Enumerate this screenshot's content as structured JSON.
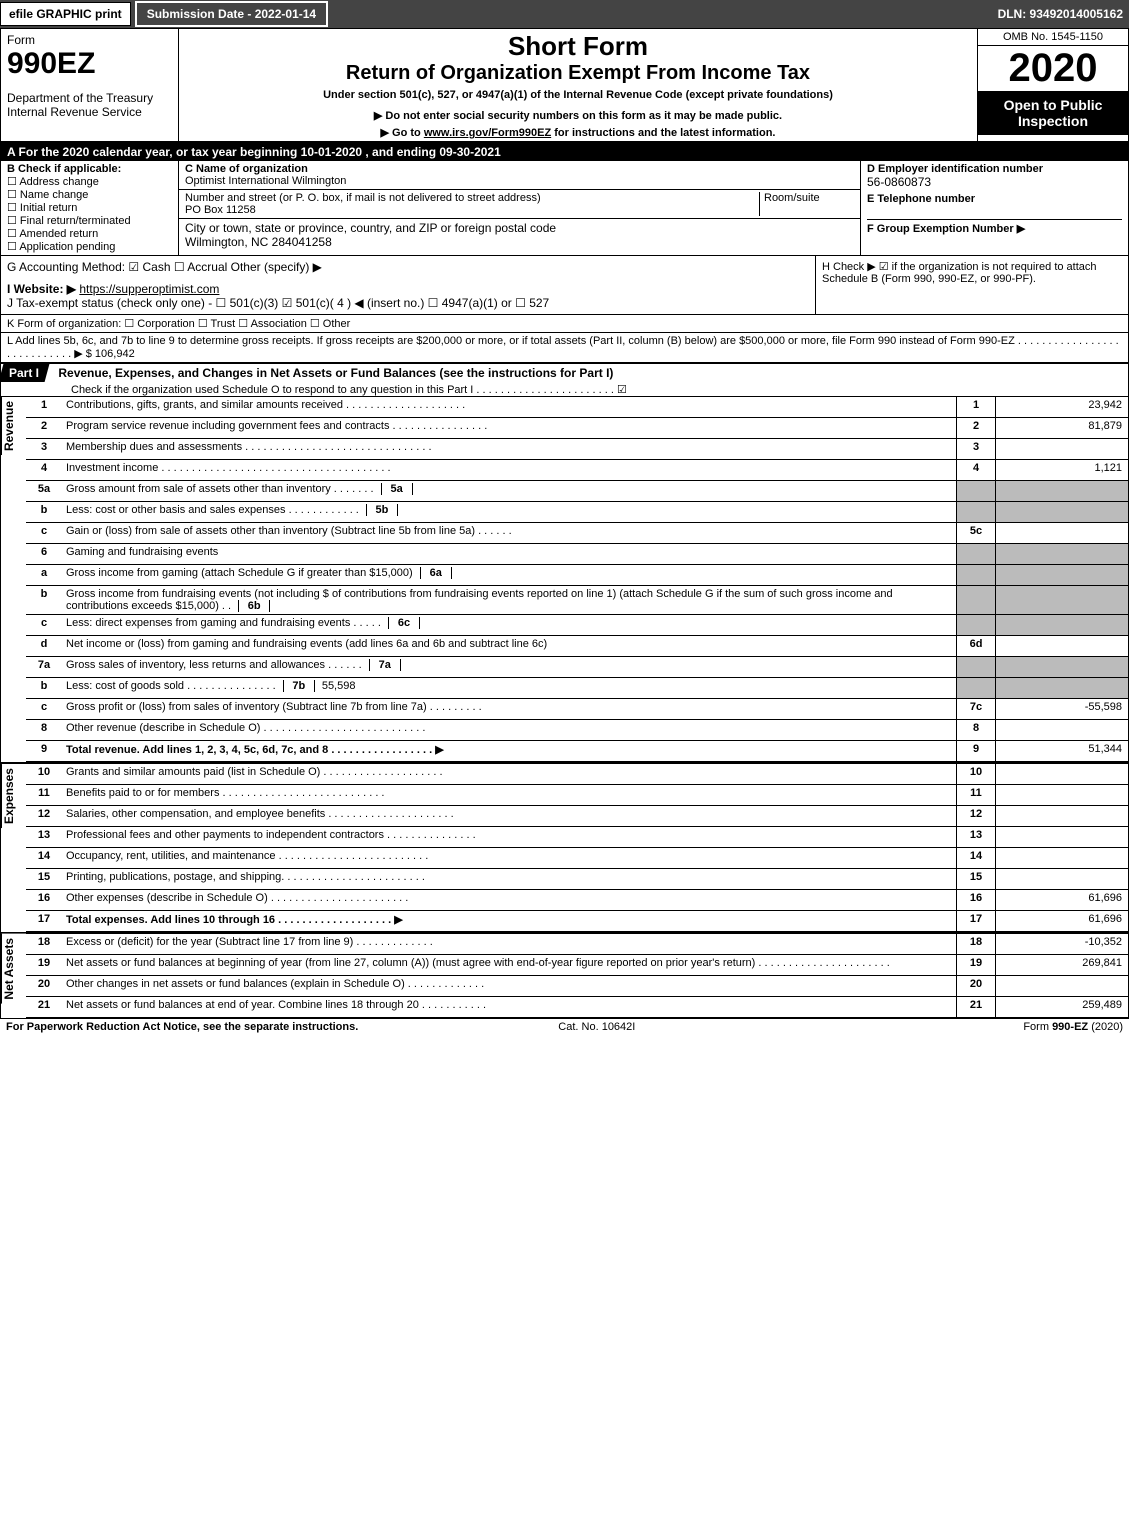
{
  "topbar": {
    "efile": "efile GRAPHIC print",
    "sub": "Submission Date - 2022-01-14",
    "dln": "DLN: 93492014005162"
  },
  "hdr": {
    "form": "Form",
    "form_num": "990EZ",
    "dept": "Department of the Treasury",
    "irs": "Internal Revenue Service",
    "short_form": "Short Form",
    "title": "Return of Organization Exempt From Income Tax",
    "under": "Under section 501(c), 527, or 4947(a)(1) of the Internal Revenue Code (except private foundations)",
    "warn": "▶ Do not enter social security numbers on this form as it may be made public.",
    "goto_pre": "▶ Go to ",
    "goto_link": "www.irs.gov/Form990EZ",
    "goto_post": " for instructions and the latest information.",
    "omb": "OMB No. 1545-1150",
    "year": "2020",
    "open": "Open to Public Inspection"
  },
  "A": "A  For the 2020 calendar year, or tax year beginning 10-01-2020 , and ending 09-30-2021",
  "B": {
    "hdr": "B  Check if applicable:",
    "opts": [
      "Address change",
      "Name change",
      "Initial return",
      "Final return/terminated",
      "Amended return",
      "Application pending"
    ]
  },
  "C": {
    "name_lbl": "C Name of organization",
    "name": "Optimist International Wilmington",
    "addr_lbl": "Number and street (or P. O. box, if mail is not delivered to street address)",
    "room_lbl": "Room/suite",
    "addr": "PO Box 11258",
    "city_lbl": "City or town, state or province, country, and ZIP or foreign postal code",
    "city": "Wilmington, NC  284041258"
  },
  "D": {
    "lbl": "D Employer identification number",
    "ein": "56-0860873"
  },
  "E": {
    "lbl": "E Telephone number"
  },
  "F": {
    "lbl": "F Group Exemption Number   ▶"
  },
  "G": "G Accounting Method:   ☑ Cash   ☐ Accrual   Other (specify) ▶",
  "H": "H   Check ▶  ☑  if the organization is not required to attach Schedule B (Form 990, 990-EZ, or 990-PF).",
  "I_pre": "I Website: ▶",
  "I_link": "https://supperoptimist.com",
  "J": "J Tax-exempt status (check only one) - ☐ 501(c)(3)  ☑ 501(c)( 4 ) ◀ (insert no.)  ☐ 4947(a)(1) or  ☐ 527",
  "K": "K Form of organization:   ☐ Corporation   ☐ Trust   ☐ Association   ☐ Other",
  "L": "L Add lines 5b, 6c, and 7b to line 9 to determine gross receipts. If gross receipts are $200,000 or more, or if total assets (Part II, column (B) below) are $500,000 or more, file Form 990 instead of Form 990-EZ  .  .  .  .  .  .  .  .  .  .  .  .  .  .  .  .  .  .  .  .  .  .  .  .  .  .  .  .  ▶ $ 106,942",
  "part1": {
    "lbl": "Part I",
    "title": "Revenue, Expenses, and Changes in Net Assets or Fund Balances (see the instructions for Part I)",
    "check": "Check if the organization used Schedule O to respond to any question in this Part I .  .  .  .  .  .  .  .  .  .  .  .  .  .  .  .  .  .  .  .  .  .  .   ☑"
  },
  "sides": {
    "rev": "Revenue",
    "exp": "Expenses",
    "na": "Net Assets"
  },
  "rows": {
    "1": {
      "n": "1",
      "d": "Contributions, gifts, grants, and similar amounts received  .  .  .  .  .  .  .  .  .  .  .  .  .  .  .  .  .  .  .  .",
      "box": "1",
      "v": "23,942"
    },
    "2": {
      "n": "2",
      "d": "Program service revenue including government fees and contracts  .  .  .  .  .  .  .  .  .  .  .  .  .  .  .  .",
      "box": "2",
      "v": "81,879"
    },
    "3": {
      "n": "3",
      "d": "Membership dues and assessments  .  .  .  .  .  .  .  .  .  .  .  .  .  .  .  .  .  .  .  .  .  .  .  .  .  .  .  .  .  .  .",
      "box": "3",
      "v": ""
    },
    "4": {
      "n": "4",
      "d": "Investment income  .  .  .  .  .  .  .  .  .  .  .  .  .  .  .  .  .  .  .  .  .  .  .  .  .  .  .  .  .  .  .  .  .  .  .  .  .  .",
      "box": "4",
      "v": "1,121"
    },
    "5a": {
      "n": "5a",
      "d": "Gross amount from sale of assets other than inventory  .  .  .  .  .  .  .",
      "ib": "5a"
    },
    "5b": {
      "n": "b",
      "d": "Less: cost or other basis and sales expenses  .  .  .  .  .  .  .  .  .  .  .  .",
      "ib": "5b"
    },
    "5c": {
      "n": "c",
      "d": "Gain or (loss) from sale of assets other than inventory (Subtract line 5b from line 5a)  .  .  .  .  .  .",
      "box": "5c",
      "v": ""
    },
    "6": {
      "n": "6",
      "d": "Gaming and fundraising events"
    },
    "6a": {
      "n": "a",
      "d": "Gross income from gaming (attach Schedule G if greater than $15,000)",
      "ib": "6a"
    },
    "6b": {
      "n": "b",
      "d": "Gross income from fundraising events (not including $                       of contributions from fundraising events reported on line 1) (attach Schedule G if the sum of such gross income and contributions exceeds $15,000)   .  .",
      "ib": "6b"
    },
    "6c": {
      "n": "c",
      "d": "Less: direct expenses from gaming and fundraising events   .  .  .  .  .",
      "ib": "6c"
    },
    "6d": {
      "n": "d",
      "d": "Net income or (loss) from gaming and fundraising events (add lines 6a and 6b and subtract line 6c)",
      "box": "6d",
      "v": ""
    },
    "7a": {
      "n": "7a",
      "d": "Gross sales of inventory, less returns and allowances  .  .  .  .  .  .",
      "ib": "7a"
    },
    "7b": {
      "n": "b",
      "d": "Less: cost of goods sold        .  .  .  .  .  .  .  .  .  .  .  .  .  .  .",
      "ib": "7b",
      "ibv": "55,598"
    },
    "7c": {
      "n": "c",
      "d": "Gross profit or (loss) from sales of inventory (Subtract line 7b from line 7a)  .  .  .  .  .  .  .  .  .",
      "box": "7c",
      "v": "-55,598"
    },
    "8": {
      "n": "8",
      "d": "Other revenue (describe in Schedule O)  .  .  .  .  .  .  .  .  .  .  .  .  .  .  .  .  .  .  .  .  .  .  .  .  .  .  .",
      "box": "8",
      "v": ""
    },
    "9": {
      "n": "9",
      "d": "Total revenue. Add lines 1, 2, 3, 4, 5c, 6d, 7c, and 8   .  .  .  .  .  .  .  .  .  .  .  .  .  .  .  .  .   ▶",
      "box": "9",
      "v": "51,344",
      "bold": true
    },
    "10": {
      "n": "10",
      "d": "Grants and similar amounts paid (list in Schedule O)  .  .  .  .  .  .  .  .  .  .  .  .  .  .  .  .  .  .  .  .",
      "box": "10",
      "v": ""
    },
    "11": {
      "n": "11",
      "d": "Benefits paid to or for members      .  .  .  .  .  .  .  .  .  .  .  .  .  .  .  .  .  .  .  .  .  .  .  .  .  .  .",
      "box": "11",
      "v": ""
    },
    "12": {
      "n": "12",
      "d": "Salaries, other compensation, and employee benefits .  .  .  .  .  .  .  .  .  .  .  .  .  .  .  .  .  .  .  .  .",
      "box": "12",
      "v": ""
    },
    "13": {
      "n": "13",
      "d": "Professional fees and other payments to independent contractors  .  .  .  .  .  .  .  .  .  .  .  .  .  .  .",
      "box": "13",
      "v": ""
    },
    "14": {
      "n": "14",
      "d": "Occupancy, rent, utilities, and maintenance .  .  .  .  .  .  .  .  .  .  .  .  .  .  .  .  .  .  .  .  .  .  .  .  .",
      "box": "14",
      "v": ""
    },
    "15": {
      "n": "15",
      "d": "Printing, publications, postage, and shipping.  .  .  .  .  .  .  .  .  .  .  .  .  .  .  .  .  .  .  .  .  .  .  .",
      "box": "15",
      "v": ""
    },
    "16": {
      "n": "16",
      "d": "Other expenses (describe in Schedule O)     .  .  .  .  .  .  .  .  .  .  .  .  .  .  .  .  .  .  .  .  .  .  .",
      "box": "16",
      "v": "61,696"
    },
    "17": {
      "n": "17",
      "d": "Total expenses. Add lines 10 through 16      .  .  .  .  .  .  .  .  .  .  .  .  .  .  .  .  .  .  .   ▶",
      "box": "17",
      "v": "61,696",
      "bold": true
    },
    "18": {
      "n": "18",
      "d": "Excess or (deficit) for the year (Subtract line 17 from line 9)       .  .  .  .  .  .  .  .  .  .  .  .  .",
      "box": "18",
      "v": "-10,352"
    },
    "19": {
      "n": "19",
      "d": "Net assets or fund balances at beginning of year (from line 27, column (A)) (must agree with end-of-year figure reported on prior year's return) .  .  .  .  .  .  .  .  .  .  .  .  .  .  .  .  .  .  .  .  .  .",
      "box": "19",
      "v": "269,841"
    },
    "20": {
      "n": "20",
      "d": "Other changes in net assets or fund balances (explain in Schedule O) .  .  .  .  .  .  .  .  .  .  .  .  .",
      "box": "20",
      "v": ""
    },
    "21": {
      "n": "21",
      "d": "Net assets or fund balances at end of year. Combine lines 18 through 20 .  .  .  .  .  .  .  .  .  .  .",
      "box": "21",
      "v": "259,489"
    }
  },
  "foot": {
    "l": "For Paperwork Reduction Act Notice, see the separate instructions.",
    "m": "Cat. No. 10642I",
    "r": "Form 990-EZ (2020)"
  }
}
